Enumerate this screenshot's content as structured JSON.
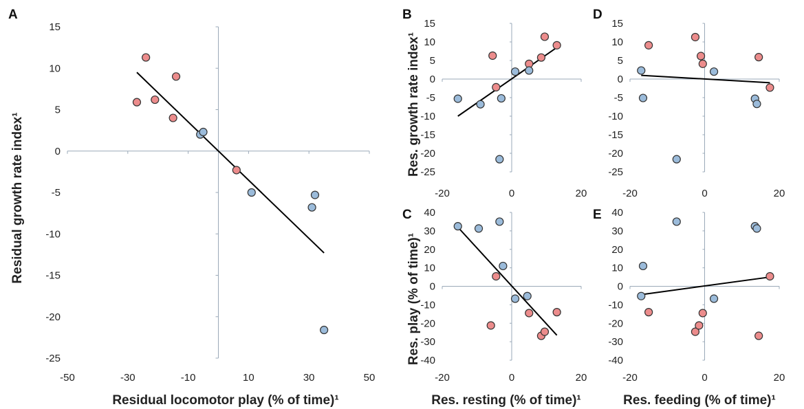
{
  "colors": {
    "red": "#ec8c8c",
    "blue": "#9bbbda",
    "axis": "#9aa9b8",
    "trend": "#000000",
    "stroke": "#333333"
  },
  "panel_labels": [
    "A",
    "B",
    "C",
    "D",
    "E"
  ],
  "tick_labels": {
    "A_y": [
      "15",
      "10",
      "5",
      "0",
      "-5",
      "-10",
      "-15",
      "-20",
      "-25"
    ],
    "A_x": [
      "-50",
      "-30",
      "-10",
      "10",
      "30",
      "50"
    ],
    "growth_y": [
      "15",
      "10",
      "5",
      "0",
      "-5",
      "-10",
      "-15",
      "-20",
      "-25"
    ],
    "play_y": [
      "40",
      "30",
      "20",
      "10",
      "0",
      "-10",
      "-20",
      "-30",
      "-40"
    ],
    "res_x": [
      "-20",
      "0",
      "20"
    ]
  },
  "chart_data": [
    {
      "panel": "A",
      "type": "scatter",
      "xlabel": "Residual locomotor play (% of time)¹",
      "ylabel": "Residual growth  rate index¹",
      "xlim": [
        -50,
        50
      ],
      "ylim": [
        -25,
        15
      ],
      "series": [
        {
          "color": "red",
          "points": [
            [
              -24,
              11.3
            ],
            [
              -27,
              5.9
            ],
            [
              -21,
              6.2
            ],
            [
              -14,
              9.0
            ],
            [
              -15,
              4.0
            ],
            [
              6,
              -2.3
            ]
          ]
        },
        {
          "color": "blue",
          "points": [
            [
              -6,
              2.0
            ],
            [
              -5,
              2.3
            ],
            [
              11,
              -5.0
            ],
            [
              32,
              -5.3
            ],
            [
              31,
              -6.8
            ],
            [
              35,
              -21.6
            ]
          ]
        }
      ],
      "trend": [
        [
          -27,
          9.5
        ],
        [
          35,
          -12.3
        ]
      ]
    },
    {
      "panel": "B",
      "type": "scatter",
      "xlabel": "",
      "ylabel": "Res. growth rate index¹",
      "xlim": [
        -20,
        20
      ],
      "ylim": [
        -25,
        15
      ],
      "series": [
        {
          "color": "red",
          "points": [
            [
              -5.5,
              6.3
            ],
            [
              -4.5,
              -2.2
            ],
            [
              5,
              4.1
            ],
            [
              8.5,
              5.8
            ],
            [
              9.5,
              11.4
            ],
            [
              13,
              9.1
            ]
          ]
        },
        {
          "color": "blue",
          "points": [
            [
              -15.5,
              -5.3
            ],
            [
              -9,
              -6.8
            ],
            [
              -3,
              -5.2
            ],
            [
              1,
              2.0
            ],
            [
              5,
              2.3
            ],
            [
              -3.5,
              -21.6
            ]
          ]
        }
      ],
      "trend": [
        [
          -15.5,
          -10.0
        ],
        [
          13,
          8.5
        ]
      ]
    },
    {
      "panel": "C",
      "type": "scatter",
      "xlabel": "Res. resting (% of time)¹",
      "ylabel": "Res. play (% of time)¹",
      "xlim": [
        -20,
        20
      ],
      "ylim": [
        -40,
        40
      ],
      "series": [
        {
          "color": "red",
          "points": [
            [
              -4.5,
              5.4
            ],
            [
              -6,
              -21.2
            ],
            [
              5,
              -14.5
            ],
            [
              13,
              -14.0
            ],
            [
              8.5,
              -26.8
            ],
            [
              9.5,
              -24.6
            ]
          ]
        },
        {
          "color": "blue",
          "points": [
            [
              -15.5,
              32.5
            ],
            [
              -9.5,
              31.3
            ],
            [
              -3.5,
              35.0
            ],
            [
              -2.5,
              11.0
            ],
            [
              1,
              -6.7
            ],
            [
              4.5,
              -5.3
            ]
          ]
        }
      ],
      "trend": [
        [
          -15.5,
          32.0
        ],
        [
          13,
          -26.5
        ]
      ]
    },
    {
      "panel": "D",
      "type": "scatter",
      "xlabel": "",
      "ylabel": "",
      "xlim": [
        -20,
        20
      ],
      "ylim": [
        -25,
        15
      ],
      "series": [
        {
          "color": "red",
          "points": [
            [
              -15,
              9.1
            ],
            [
              -2.5,
              11.3
            ],
            [
              -1,
              6.2
            ],
            [
              -0.5,
              4.1
            ],
            [
              14.5,
              5.9
            ],
            [
              17.5,
              -2.3
            ]
          ]
        },
        {
          "color": "blue",
          "points": [
            [
              -17,
              2.3
            ],
            [
              -16.5,
              -5.1
            ],
            [
              2.5,
              2.0
            ],
            [
              13.5,
              -5.3
            ],
            [
              14,
              -6.7
            ],
            [
              -7.5,
              -21.6
            ]
          ]
        }
      ],
      "trend": [
        [
          -17,
          1.0
        ],
        [
          17.5,
          -1.0
        ]
      ]
    },
    {
      "panel": "E",
      "type": "scatter",
      "xlabel": "Res. feeding (% of time)¹",
      "ylabel": "",
      "xlim": [
        -20,
        20
      ],
      "ylim": [
        -40,
        40
      ],
      "series": [
        {
          "color": "red",
          "points": [
            [
              -15,
              -14.0
            ],
            [
              -2.5,
              -24.6
            ],
            [
              -1.5,
              -21.2
            ],
            [
              -0.5,
              -14.5
            ],
            [
              14.5,
              -26.8
            ],
            [
              17.5,
              5.4
            ]
          ]
        },
        {
          "color": "blue",
          "points": [
            [
              -17,
              -5.3
            ],
            [
              -16.5,
              11.0
            ],
            [
              -7.5,
              35.0
            ],
            [
              2.5,
              -6.7
            ],
            [
              13.5,
              32.5
            ],
            [
              14,
              31.3
            ]
          ]
        }
      ],
      "trend": [
        [
          -17,
          -4.5
        ],
        [
          17.5,
          5.0
        ]
      ]
    }
  ]
}
